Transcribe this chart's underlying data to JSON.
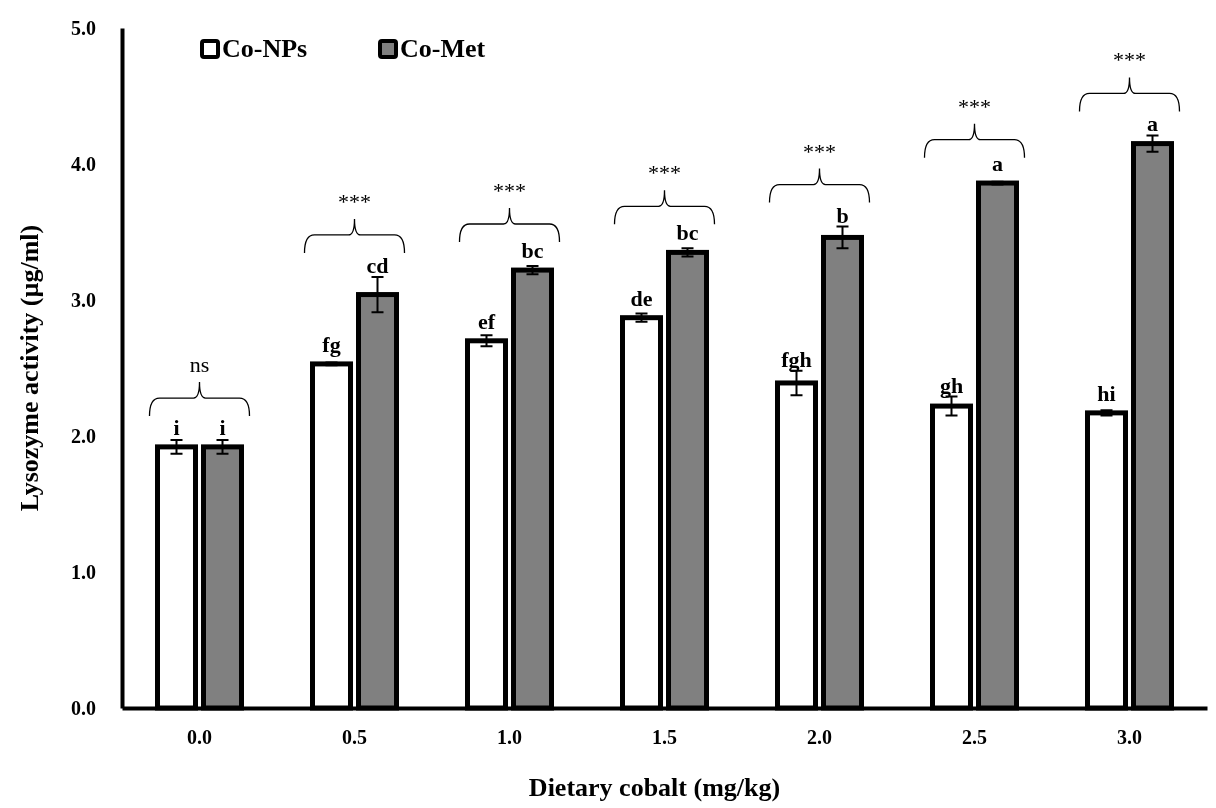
{
  "chart_data": {
    "type": "bar",
    "xlabel": "Dietary cobalt (mg/kg)",
    "ylabel": "Lysozyme activity  (µg/ml)",
    "categories": [
      "0.0",
      "0.5",
      "1.0",
      "1.5",
      "2.0",
      "2.5",
      "3.0"
    ],
    "series": [
      {
        "name": "Co-NPs",
        "color": "#ffffff",
        "values": [
          1.92,
          2.53,
          2.7,
          2.87,
          2.39,
          2.22,
          2.17
        ],
        "errors": [
          0.05,
          0.01,
          0.04,
          0.03,
          0.09,
          0.07,
          0.02
        ],
        "value_labels": [
          "i",
          "fg",
          "ef",
          "de",
          "fgh",
          "gh",
          "hi"
        ]
      },
      {
        "name": "Co-Met",
        "color": "#808080",
        "values": [
          1.92,
          3.04,
          3.22,
          3.35,
          3.46,
          3.86,
          4.15
        ],
        "errors": [
          0.05,
          0.13,
          0.03,
          0.03,
          0.08,
          0.01,
          0.06
        ],
        "value_labels": [
          "i",
          "cd",
          "bc",
          "bc",
          "b",
          "a",
          "a"
        ]
      }
    ],
    "ylim": [
      0,
      5
    ],
    "yticks": [
      {
        "value": 0,
        "label": "0.0"
      },
      {
        "value": 1,
        "label": "1.0"
      },
      {
        "value": 2,
        "label": "2.0"
      },
      {
        "value": 3,
        "label": "3.0"
      },
      {
        "value": 4,
        "label": "4.0"
      },
      {
        "value": 5,
        "label": "5.0"
      }
    ],
    "annotations": [
      "ns",
      "***",
      "***",
      "***",
      "***",
      "***",
      "***"
    ],
    "legend": "top left",
    "grid": false
  }
}
